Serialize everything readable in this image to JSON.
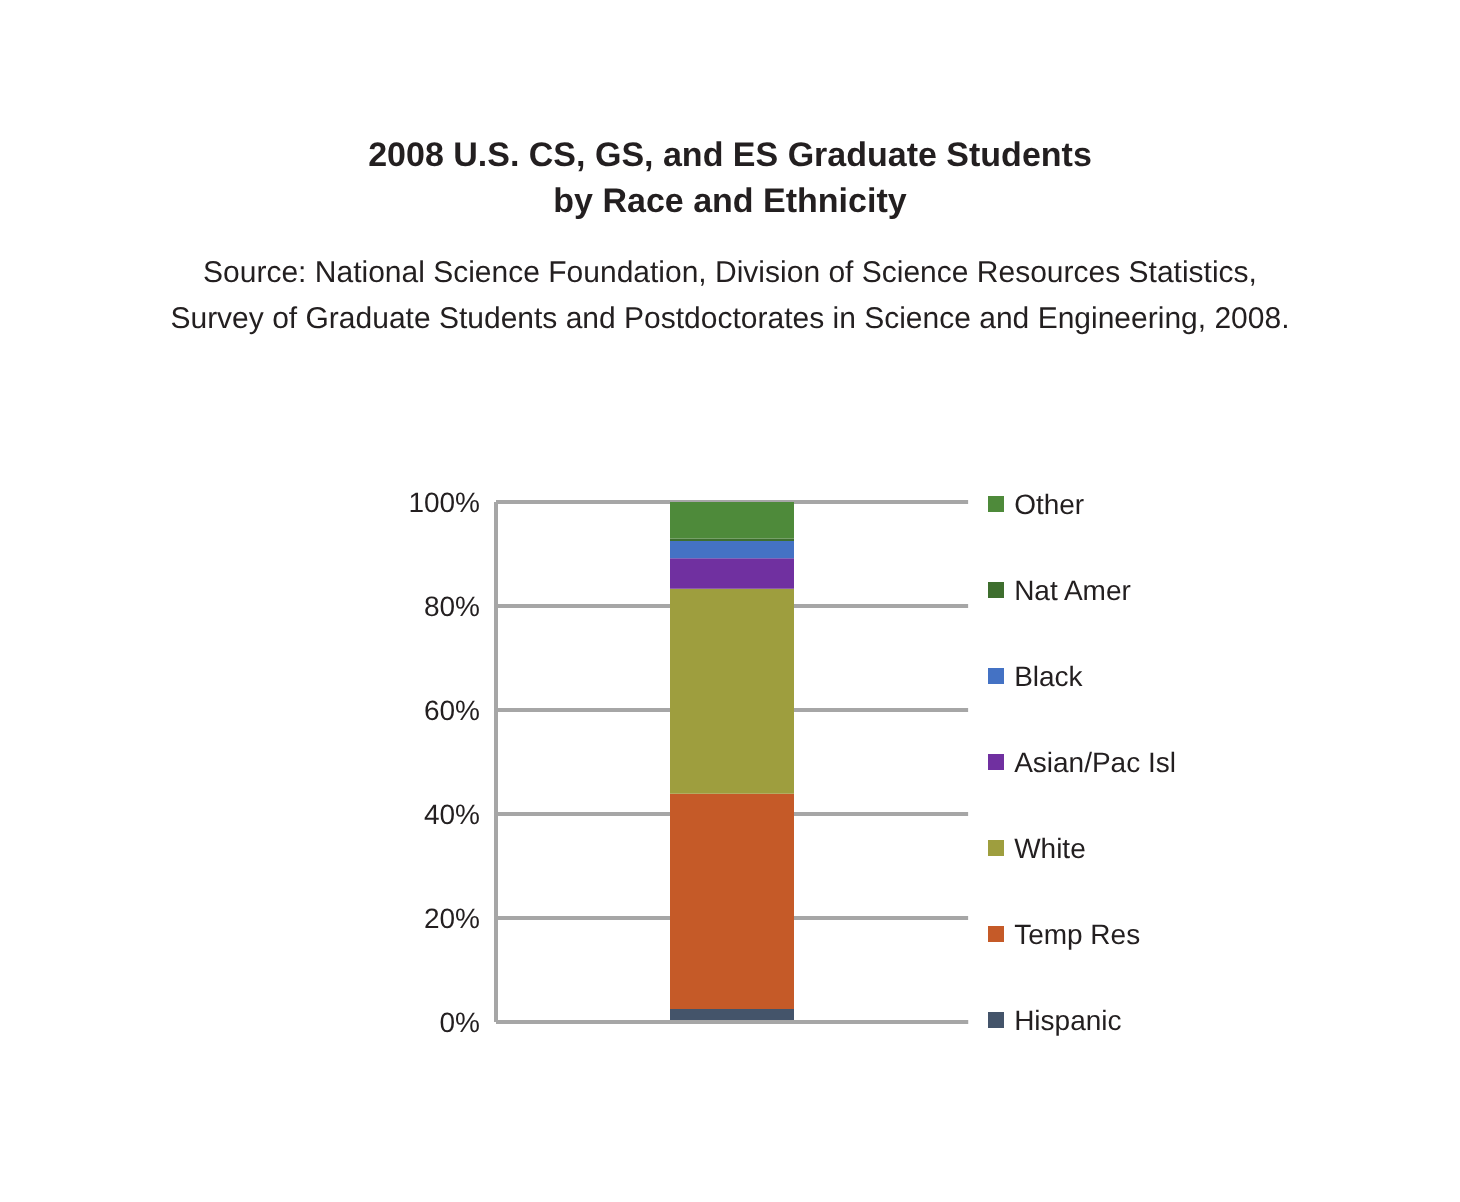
{
  "chart_data": {
    "type": "bar",
    "title": "2008 U.S. CS, GS, and ES Graduate Students\nby Race and Ethnicity",
    "annotations": [
      "Source: National Science Foundation, Division of Science Resources Statistics,\nSurvey of Graduate Students and Postdoctorates in Science and Engineering, 2008."
    ],
    "categories": [
      null
    ],
    "stacked": true,
    "series": [
      {
        "name": "Hispanic",
        "color": "#44546a",
        "values": [
          2.5
        ]
      },
      {
        "name": "Temp Res",
        "color": "#c55a28",
        "values": [
          41.4
        ]
      },
      {
        "name": "White",
        "color": "#9e9e3e",
        "values": [
          39.4
        ]
      },
      {
        "name": "Asian/Pac Isl",
        "color": "#7030a0",
        "values": [
          5.9
        ]
      },
      {
        "name": "Black",
        "color": "#4472c4",
        "values": [
          3.3
        ]
      },
      {
        "name": "Nat Amer",
        "color": "#3e6e2e",
        "values": [
          0.5
        ]
      },
      {
        "name": "Other",
        "color": "#4e8a3a",
        "values": [
          7.0
        ]
      }
    ],
    "ylim": [
      0,
      100
    ],
    "yticks": [
      {
        "value": 0,
        "label": "0%"
      },
      {
        "value": 20,
        "label": "20%"
      },
      {
        "value": 40,
        "label": "40%"
      },
      {
        "value": 60,
        "label": "60%"
      },
      {
        "value": 80,
        "label": "80%"
      },
      {
        "value": 100,
        "label": "100%"
      }
    ],
    "grid": "y",
    "legend": "right",
    "tick_labels": "y"
  }
}
